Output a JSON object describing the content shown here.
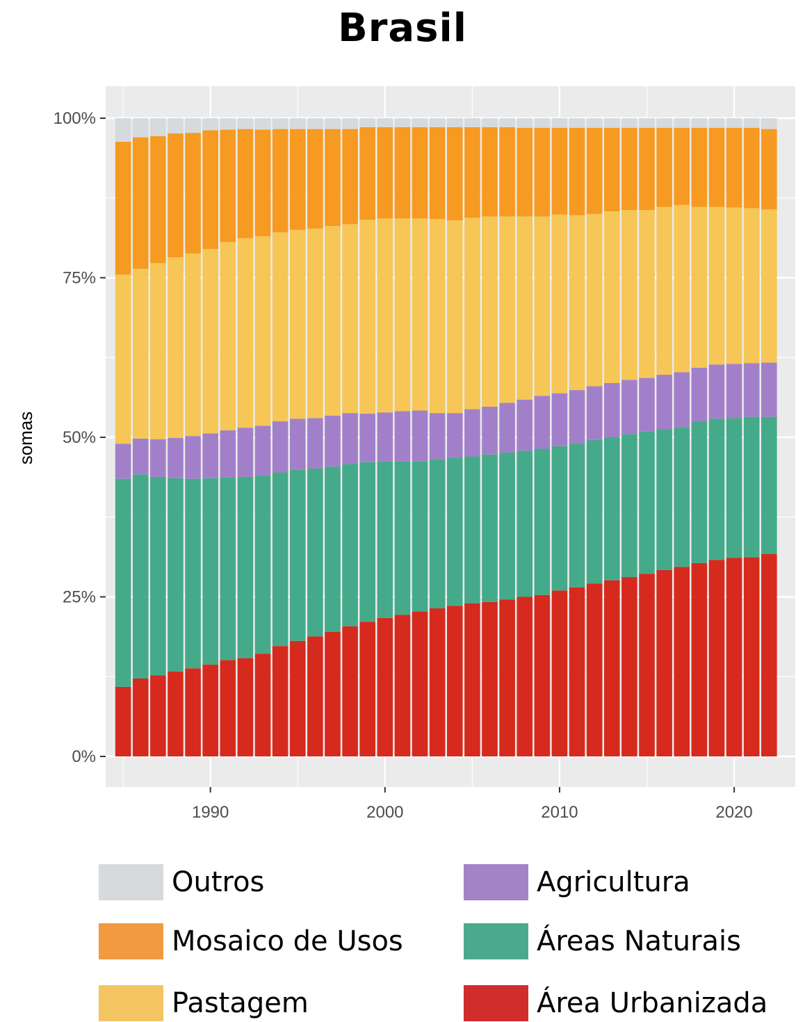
{
  "chart_data": {
    "type": "bar",
    "stacked": true,
    "title": "Brasil",
    "ylabel": "somas",
    "xlabel": "",
    "ylim": [
      0,
      1.05
    ],
    "xlim": [
      1984,
      2023.5
    ],
    "y_ticks": [
      0,
      0.25,
      0.5,
      0.75,
      1.0
    ],
    "y_tick_labels": [
      "0%",
      "25%",
      "50%",
      "75%",
      "100%"
    ],
    "x_ticks": [
      1990,
      2000,
      2010,
      2020
    ],
    "x_tick_labels": [
      "1990",
      "2000",
      "2010",
      "2020"
    ],
    "grid": true,
    "legend_position": "bottom",
    "categories": [
      1985,
      1986,
      1987,
      1988,
      1989,
      1990,
      1991,
      1992,
      1993,
      1994,
      1995,
      1996,
      1997,
      1998,
      1999,
      2000,
      2001,
      2002,
      2003,
      2004,
      2005,
      2006,
      2007,
      2008,
      2009,
      2010,
      2011,
      2012,
      2013,
      2014,
      2015,
      2016,
      2017,
      2018,
      2019,
      2020,
      2021,
      2022
    ],
    "series": [
      {
        "name": "Área Urbanizada",
        "color": "#d62a1e",
        "values": [
          0.109,
          0.122,
          0.127,
          0.133,
          0.138,
          0.144,
          0.151,
          0.154,
          0.161,
          0.173,
          0.181,
          0.188,
          0.195,
          0.204,
          0.211,
          0.217,
          0.222,
          0.227,
          0.232,
          0.236,
          0.24,
          0.242,
          0.246,
          0.25,
          0.253,
          0.26,
          0.265,
          0.271,
          0.276,
          0.281,
          0.286,
          0.292,
          0.297,
          0.303,
          0.308,
          0.311,
          0.312,
          0.317
        ]
      },
      {
        "name": "Áreas Naturais",
        "color": "#45aa8a",
        "values": [
          0.326,
          0.32,
          0.311,
          0.303,
          0.297,
          0.292,
          0.286,
          0.284,
          0.279,
          0.272,
          0.268,
          0.263,
          0.259,
          0.254,
          0.25,
          0.245,
          0.24,
          0.235,
          0.234,
          0.232,
          0.23,
          0.231,
          0.23,
          0.229,
          0.229,
          0.226,
          0.226,
          0.225,
          0.224,
          0.224,
          0.223,
          0.221,
          0.219,
          0.222,
          0.221,
          0.219,
          0.22,
          0.215
        ]
      },
      {
        "name": "Agricultura",
        "color": "#a280c9",
        "values": [
          0.055,
          0.056,
          0.059,
          0.063,
          0.067,
          0.07,
          0.074,
          0.077,
          0.078,
          0.08,
          0.08,
          0.079,
          0.08,
          0.08,
          0.076,
          0.077,
          0.079,
          0.08,
          0.072,
          0.07,
          0.074,
          0.075,
          0.078,
          0.08,
          0.083,
          0.083,
          0.083,
          0.084,
          0.085,
          0.085,
          0.084,
          0.085,
          0.086,
          0.084,
          0.085,
          0.085,
          0.084,
          0.085
        ]
      },
      {
        "name": "Pastagem",
        "color": "#f6c656",
        "values": [
          0.265,
          0.266,
          0.276,
          0.283,
          0.286,
          0.289,
          0.295,
          0.297,
          0.297,
          0.296,
          0.296,
          0.297,
          0.297,
          0.296,
          0.304,
          0.304,
          0.302,
          0.301,
          0.304,
          0.302,
          0.3,
          0.298,
          0.292,
          0.287,
          0.281,
          0.28,
          0.274,
          0.27,
          0.269,
          0.266,
          0.263,
          0.263,
          0.262,
          0.252,
          0.247,
          0.245,
          0.243,
          0.24
        ]
      },
      {
        "name": "Mosaico de Usos",
        "color": "#f69a21",
        "values": [
          0.208,
          0.206,
          0.199,
          0.194,
          0.189,
          0.186,
          0.176,
          0.171,
          0.167,
          0.162,
          0.158,
          0.156,
          0.152,
          0.149,
          0.145,
          0.143,
          0.143,
          0.143,
          0.144,
          0.146,
          0.142,
          0.14,
          0.14,
          0.139,
          0.139,
          0.136,
          0.137,
          0.135,
          0.131,
          0.129,
          0.129,
          0.124,
          0.121,
          0.124,
          0.124,
          0.125,
          0.126,
          0.126
        ]
      },
      {
        "name": "Outros",
        "color": "#d6dadd",
        "values": [
          0.037,
          0.03,
          0.028,
          0.024,
          0.023,
          0.019,
          0.018,
          0.017,
          0.018,
          0.017,
          0.017,
          0.017,
          0.017,
          0.017,
          0.014,
          0.014,
          0.014,
          0.014,
          0.014,
          0.014,
          0.014,
          0.014,
          0.014,
          0.015,
          0.015,
          0.015,
          0.015,
          0.015,
          0.015,
          0.015,
          0.015,
          0.015,
          0.015,
          0.015,
          0.015,
          0.015,
          0.015,
          0.017
        ]
      }
    ]
  },
  "legend": {
    "items": [
      {
        "label": "Outros",
        "color": "#d6dadd"
      },
      {
        "label": "Mosaico de Usos",
        "color": "#f29a42"
      },
      {
        "label": "Pastagem",
        "color": "#f5c462"
      },
      {
        "label": "Agricultura",
        "color": "#a283c6"
      },
      {
        "label": "Áreas Naturais",
        "color": "#4baa8c"
      },
      {
        "label": "Área Urbanizada",
        "color": "#d12d2c"
      }
    ]
  }
}
